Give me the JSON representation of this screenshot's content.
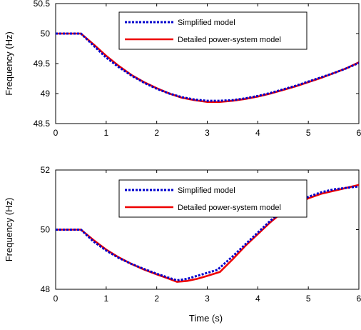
{
  "chart_data": [
    {
      "type": "line",
      "title": "",
      "xlabel": "",
      "ylabel": "Frequency (Hz)",
      "xlim": [
        0,
        6
      ],
      "ylim": [
        48.5,
        50.5
      ],
      "xticks": [
        "0",
        "1",
        "2",
        "3",
        "4",
        "5",
        "6"
      ],
      "yticks": [
        "48.5",
        "49",
        "49.5",
        "50",
        "50.5"
      ],
      "grid": false,
      "legend_position": "top-right",
      "series": [
        {
          "name": "Simplified model",
          "color": "#0000cc",
          "style": "dotted",
          "x": [
            0,
            0.5,
            0.75,
            1.0,
            1.25,
            1.5,
            1.75,
            2.0,
            2.25,
            2.5,
            2.75,
            3.0,
            3.25,
            3.5,
            3.75,
            4.0,
            4.25,
            4.5,
            4.75,
            5.0,
            5.25,
            5.5,
            5.75,
            6.0
          ],
          "y": [
            50.0,
            50.0,
            49.8,
            49.6,
            49.44,
            49.3,
            49.18,
            49.08,
            49.0,
            48.94,
            48.9,
            48.88,
            48.88,
            48.89,
            48.92,
            48.96,
            49.01,
            49.07,
            49.13,
            49.2,
            49.27,
            49.34,
            49.42,
            49.51
          ]
        },
        {
          "name": "Detailed power-system model",
          "color": "#ee0000",
          "style": "solid",
          "x": [
            0,
            0.5,
            0.75,
            1.0,
            1.25,
            1.5,
            1.75,
            2.0,
            2.25,
            2.5,
            2.75,
            3.0,
            3.25,
            3.5,
            3.75,
            4.0,
            4.25,
            4.5,
            4.75,
            5.0,
            5.25,
            5.5,
            5.75,
            6.0
          ],
          "y": [
            50.0,
            50.0,
            49.82,
            49.63,
            49.46,
            49.31,
            49.19,
            49.09,
            49.0,
            48.93,
            48.89,
            48.86,
            48.86,
            48.88,
            48.91,
            48.95,
            49.0,
            49.06,
            49.12,
            49.19,
            49.26,
            49.34,
            49.42,
            49.52
          ]
        }
      ]
    },
    {
      "type": "line",
      "title": "",
      "xlabel": "Time (s)",
      "ylabel": "Frequency (Hz)",
      "xlim": [
        0,
        6
      ],
      "ylim": [
        48,
        52
      ],
      "xticks": [
        "0",
        "1",
        "2",
        "3",
        "4",
        "5",
        "6"
      ],
      "yticks": [
        "48",
        "50",
        "52"
      ],
      "grid": false,
      "legend_position": "top-right",
      "series": [
        {
          "name": "Simplified model",
          "color": "#0000cc",
          "style": "dotted",
          "x": [
            0,
            0.5,
            0.75,
            1.0,
            1.25,
            1.5,
            1.75,
            2.0,
            2.25,
            2.4,
            2.6,
            2.8,
            3.0,
            3.2,
            3.5,
            3.75,
            4.0,
            4.25,
            4.5,
            4.75,
            5.0,
            5.25,
            5.5,
            5.75,
            6.0
          ],
          "y": [
            50.0,
            50.0,
            49.6,
            49.3,
            49.05,
            48.85,
            48.68,
            48.52,
            48.38,
            48.3,
            48.35,
            48.45,
            48.55,
            48.65,
            49.1,
            49.5,
            49.9,
            50.3,
            50.65,
            50.9,
            51.1,
            51.25,
            51.35,
            51.4,
            51.45
          ]
        },
        {
          "name": "Detailed power-system model",
          "color": "#ee0000",
          "style": "solid",
          "x": [
            0,
            0.5,
            0.75,
            1.0,
            1.25,
            1.5,
            1.75,
            2.0,
            2.25,
            2.4,
            2.6,
            2.8,
            3.0,
            3.25,
            3.5,
            3.75,
            4.0,
            4.25,
            4.5,
            4.75,
            5.0,
            5.25,
            5.5,
            5.75,
            6.0
          ],
          "y": [
            50.0,
            50.0,
            49.65,
            49.33,
            49.07,
            48.85,
            48.66,
            48.5,
            48.35,
            48.25,
            48.28,
            48.35,
            48.45,
            48.58,
            49.0,
            49.45,
            49.85,
            50.25,
            50.6,
            50.85,
            51.05,
            51.2,
            51.3,
            51.4,
            51.5
          ]
        }
      ]
    }
  ]
}
